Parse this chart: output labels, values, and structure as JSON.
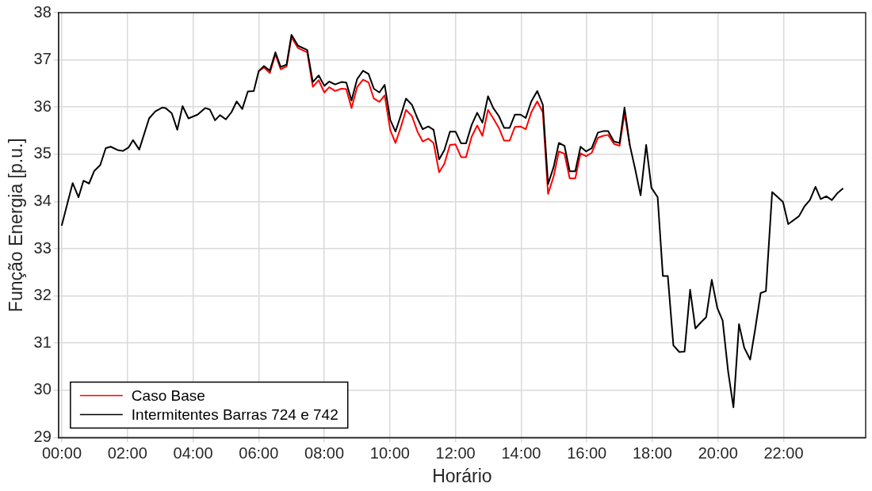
{
  "chart_data": {
    "type": "line",
    "xlabel": "Horário",
    "ylabel": "Função Energia [p.u.]",
    "x": [
      0,
      0.33,
      0.51,
      0.66,
      0.83,
      0.99,
      1.17,
      1.34,
      1.49,
      1.7,
      1.86,
      2.03,
      2.17,
      2.36,
      2.66,
      2.85,
      3.06,
      3.16,
      3.35,
      3.52,
      3.68,
      3.86,
      4.14,
      4.37,
      4.51,
      4.67,
      4.82,
      5,
      5.17,
      5.33,
      5.5,
      5.67,
      5.85,
      6,
      6.16,
      6.34,
      6.51,
      6.67,
      6.85,
      7,
      7.2,
      7.48,
      7.65,
      7.83,
      8,
      8.15,
      8.33,
      8.52,
      8.67,
      8.83,
      9,
      9.18,
      9.35,
      9.51,
      9.68,
      9.84,
      10.01,
      10.17,
      10.34,
      10.49,
      10.67,
      10.84,
      11,
      11.17,
      11.33,
      11.5,
      11.66,
      11.83,
      12,
      12.17,
      12.32,
      12.49,
      12.66,
      12.82,
      12.99,
      13.15,
      13.32,
      13.48,
      13.65,
      13.81,
      13.98,
      14.14,
      14.31,
      14.49,
      14.66,
      14.82,
      14.99,
      15.15,
      15.32,
      15.48,
      15.65,
      15.81,
      15.98,
      16.15,
      16.34,
      16.5,
      16.65,
      16.83,
      17,
      17.15,
      17.31,
      17.48,
      17.64,
      17.81,
      17.97,
      18.16,
      18.32,
      18.47,
      18.64,
      18.82,
      18.98,
      19.15,
      19.31,
      19.48,
      19.64,
      19.81,
      19.98,
      20.14,
      20.31,
      20.47,
      20.64,
      20.8,
      20.98,
      21.13,
      21.3,
      21.46,
      21.65,
      21.98,
      22.14,
      22.47,
      22.64,
      22.8,
      22.97,
      23.13,
      23.3,
      23.47,
      23.63,
      23.8
    ],
    "series": [
      {
        "name": "Caso Base",
        "color": "#ff0000",
        "values": [
          null,
          null,
          null,
          null,
          null,
          null,
          null,
          null,
          null,
          null,
          null,
          null,
          null,
          null,
          null,
          null,
          null,
          null,
          null,
          null,
          null,
          null,
          null,
          null,
          null,
          null,
          null,
          null,
          null,
          null,
          null,
          null,
          null,
          36.76,
          36.84,
          36.72,
          37.12,
          36.8,
          36.86,
          37.48,
          37.25,
          37.16,
          36.43,
          36.57,
          36.31,
          36.42,
          36.34,
          36.39,
          36.38,
          35.98,
          36.42,
          36.58,
          36.52,
          36.18,
          36.11,
          36.25,
          35.51,
          35.24,
          35.59,
          35.94,
          35.81,
          35.48,
          35.27,
          35.33,
          35.24,
          34.62,
          34.8,
          35.2,
          35.21,
          34.94,
          34.94,
          35.37,
          35.61,
          35.39,
          35.94,
          35.76,
          35.56,
          35.29,
          35.29,
          35.58,
          35.59,
          35.53,
          35.89,
          36.12,
          35.89,
          34.16,
          34.53,
          35.06,
          35.01,
          34.49,
          34.49,
          35.02,
          34.96,
          35.03,
          35.35,
          35.39,
          35.41,
          35.22,
          35.18,
          35.87,
          35.2,
          null,
          null,
          null,
          null,
          null,
          null,
          null,
          null,
          null,
          null,
          null,
          null,
          null,
          null,
          null,
          null,
          null,
          null,
          null,
          null,
          null,
          null,
          null,
          null,
          null,
          null,
          null,
          null,
          null,
          null,
          null,
          null,
          null,
          null,
          null,
          null,
          null
        ]
      },
      {
        "name": "Intermitentes Barras 724 e 742",
        "color": "#000000",
        "values": [
          33.5,
          34.39,
          34.09,
          34.44,
          34.38,
          34.65,
          34.77,
          35.13,
          35.16,
          35.09,
          35.07,
          35.14,
          35.3,
          35.1,
          35.76,
          35.91,
          35.99,
          35.98,
          35.87,
          35.52,
          36.02,
          35.76,
          35.84,
          35.98,
          35.95,
          35.72,
          35.83,
          35.74,
          35.89,
          36.12,
          35.96,
          36.33,
          36.34,
          36.76,
          36.87,
          36.77,
          37.16,
          36.85,
          36.9,
          37.53,
          37.3,
          37.21,
          36.53,
          36.67,
          36.45,
          36.54,
          36.48,
          36.53,
          36.52,
          36.14,
          36.59,
          36.77,
          36.7,
          36.39,
          36.31,
          36.47,
          35.73,
          35.48,
          35.84,
          36.18,
          36.05,
          35.76,
          35.53,
          35.59,
          35.52,
          34.89,
          35.09,
          35.48,
          35.48,
          35.23,
          35.23,
          35.62,
          35.88,
          35.67,
          36.23,
          35.98,
          35.81,
          35.56,
          35.56,
          35.84,
          35.84,
          35.77,
          36.12,
          36.34,
          36.05,
          34.37,
          34.73,
          35.24,
          35.18,
          34.64,
          34.64,
          35.16,
          35.06,
          35.13,
          35.46,
          35.49,
          35.49,
          35.27,
          35.24,
          35.99,
          35.2,
          34.67,
          34.13,
          35.2,
          34.29,
          34.09,
          32.42,
          32.42,
          30.95,
          30.81,
          30.82,
          32.13,
          31.31,
          31.44,
          31.55,
          32.34,
          31.74,
          31.48,
          30.39,
          29.64,
          31.4,
          30.9,
          30.65,
          31.28,
          32.06,
          32.1,
          34.2,
          33.99,
          33.52,
          33.69,
          33.9,
          34.03,
          34.31,
          34.05,
          34.11,
          34.03,
          34.17,
          34.27
        ]
      }
    ],
    "xlim": [
      -0.1,
      24.5
    ],
    "xticks": [
      {
        "value": 0,
        "label": "00:00"
      },
      {
        "value": 2,
        "label": "02:00"
      },
      {
        "value": 4,
        "label": "04:00"
      },
      {
        "value": 6,
        "label": "06:00"
      },
      {
        "value": 8,
        "label": "08:00"
      },
      {
        "value": 10,
        "label": "10:00"
      },
      {
        "value": 12,
        "label": "12:00"
      },
      {
        "value": 14,
        "label": "14:00"
      },
      {
        "value": 16,
        "label": "16:00"
      },
      {
        "value": 18,
        "label": "18:00"
      },
      {
        "value": 20,
        "label": "20:00"
      },
      {
        "value": 22,
        "label": "22:00"
      }
    ],
    "ylim": [
      29,
      38
    ],
    "yticks": [
      29,
      30,
      31,
      32,
      33,
      34,
      35,
      36,
      37,
      38
    ],
    "grid": true,
    "legend": "bottom left",
    "line_style": "solid",
    "marker": "none"
  }
}
